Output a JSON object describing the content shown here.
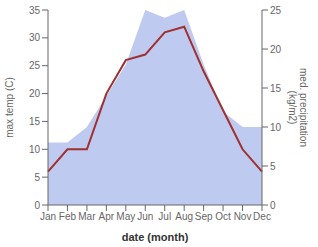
{
  "chart_data": {
    "type": "line",
    "xlabel": "date (month)",
    "ylabel": "max temp (C)",
    "y2label": "med. precipitation\n(kg/m2)",
    "categories": [
      "Jan",
      "Feb",
      "Mar",
      "Apr",
      "May",
      "Jun",
      "Jul",
      "Aug",
      "Sep",
      "Oct",
      "Nov",
      "Dec"
    ],
    "series": [
      {
        "type": "area",
        "axis": "y2",
        "color": "#b8c4f0",
        "values": [
          8,
          8,
          10,
          14,
          18,
          25,
          24,
          25,
          18,
          12,
          10,
          10
        ]
      },
      {
        "type": "line",
        "color": "#a03030",
        "values": [
          6,
          10,
          10,
          20,
          26,
          27,
          31,
          32,
          24,
          17,
          10,
          6
        ]
      }
    ],
    "ylim": [
      0,
      35
    ],
    "yticks": [
      0,
      5,
      10,
      15,
      20,
      25,
      30,
      35
    ],
    "y2lim": [
      0,
      25
    ],
    "y2ticks": [
      0,
      5,
      10,
      15,
      20,
      25
    ]
  }
}
